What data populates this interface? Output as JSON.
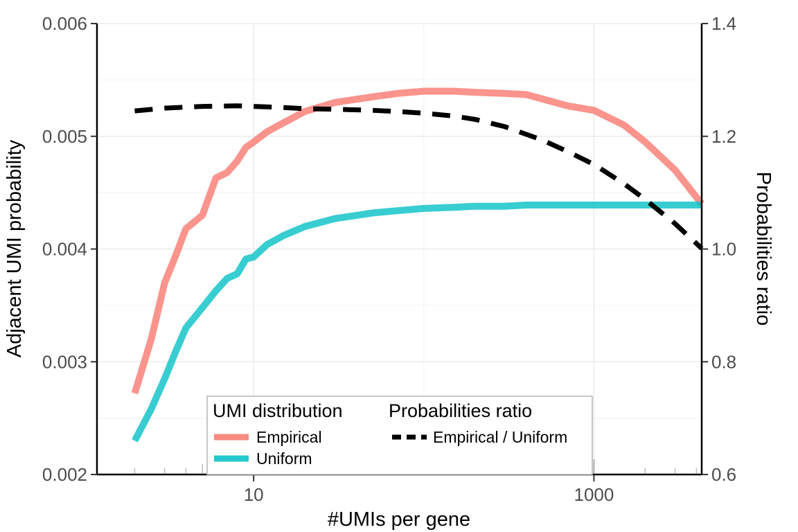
{
  "chart_data": {
    "type": "line",
    "xlabel": "#UMIs per gene",
    "ylabel": "Adjacent UMI probability",
    "y2label": "Probabilities ratio",
    "x_scale": "log10",
    "xlim": [
      1.2,
      4300
    ],
    "ylim": [
      0.002,
      0.006
    ],
    "y2lim": [
      0.6,
      1.4
    ],
    "x_ticks": [
      10,
      1000
    ],
    "x_tick_labels": [
      "10",
      "1000"
    ],
    "y_ticks": [
      0.002,
      0.003,
      0.004,
      0.005,
      0.006
    ],
    "y_tick_labels": [
      "0.002",
      "0.003",
      "0.004",
      "0.005",
      "0.006"
    ],
    "y2_ticks": [
      0.6,
      0.8,
      1.0,
      1.2,
      1.4
    ],
    "y2_tick_labels": [
      "0.6",
      "0.8",
      "1.0",
      "1.2",
      "1.4"
    ],
    "grid": true,
    "legend_placement": "bottom-center",
    "series": [
      {
        "name": "Empirical",
        "group": "UMI distribution",
        "axis": "left",
        "color": "#F8766D",
        "style": "solid",
        "x": [
          2,
          2.5,
          3,
          3.5,
          4,
          5,
          6,
          7,
          8,
          9,
          10,
          12,
          15,
          20,
          30,
          50,
          70,
          100,
          150,
          200,
          300,
          400,
          500,
          700,
          1000,
          1500,
          2000,
          3000,
          4300
        ],
        "y": [
          0.00272,
          0.0032,
          0.0037,
          0.00395,
          0.00418,
          0.0043,
          0.00463,
          0.00468,
          0.00478,
          0.0049,
          0.00495,
          0.00504,
          0.00512,
          0.00522,
          0.0053,
          0.00535,
          0.00538,
          0.0054,
          0.0054,
          0.00539,
          0.00538,
          0.00537,
          0.00533,
          0.00527,
          0.00523,
          0.0051,
          0.00495,
          0.0047,
          0.0044
        ]
      },
      {
        "name": "Uniform",
        "group": "UMI distribution",
        "axis": "left",
        "color": "#00BFC4",
        "style": "solid",
        "x": [
          2,
          2.5,
          3,
          3.5,
          4,
          5,
          6,
          7,
          8,
          9,
          10,
          12,
          15,
          20,
          30,
          50,
          70,
          100,
          150,
          200,
          300,
          400,
          500,
          700,
          1000,
          1500,
          2000,
          3000,
          4300
        ],
        "y": [
          0.0023,
          0.00258,
          0.00285,
          0.0031,
          0.0033,
          0.00348,
          0.00363,
          0.00374,
          0.00378,
          0.00391,
          0.00393,
          0.00404,
          0.00412,
          0.0042,
          0.00427,
          0.00432,
          0.00434,
          0.00436,
          0.00437,
          0.00438,
          0.00438,
          0.00439,
          0.00439,
          0.00439,
          0.00439,
          0.00439,
          0.00439,
          0.00439,
          0.00439
        ]
      },
      {
        "name": "Empirical / Uniform",
        "group": "Probabilities ratio",
        "axis": "right",
        "color": "#000000",
        "style": "dashed",
        "x": [
          2,
          3,
          5,
          8,
          10,
          15,
          20,
          30,
          50,
          70,
          100,
          150,
          200,
          300,
          500,
          700,
          1000,
          1500,
          2000,
          3000,
          4300
        ],
        "y": [
          1.245,
          1.25,
          1.253,
          1.254,
          1.253,
          1.251,
          1.249,
          1.248,
          1.246,
          1.244,
          1.241,
          1.236,
          1.23,
          1.217,
          1.193,
          1.173,
          1.15,
          1.116,
          1.088,
          1.045,
          1.001
        ]
      }
    ],
    "legend": {
      "groups": [
        {
          "title": "UMI distribution",
          "items": [
            {
              "label": "Empirical",
              "color": "#F8766D",
              "style": "solid"
            },
            {
              "label": "Uniform",
              "color": "#00BFC4",
              "style": "solid"
            }
          ]
        },
        {
          "title": "Probabilities ratio",
          "items": [
            {
              "label": "Empirical / Uniform",
              "color": "#000000",
              "style": "dashed"
            }
          ]
        }
      ]
    }
  }
}
